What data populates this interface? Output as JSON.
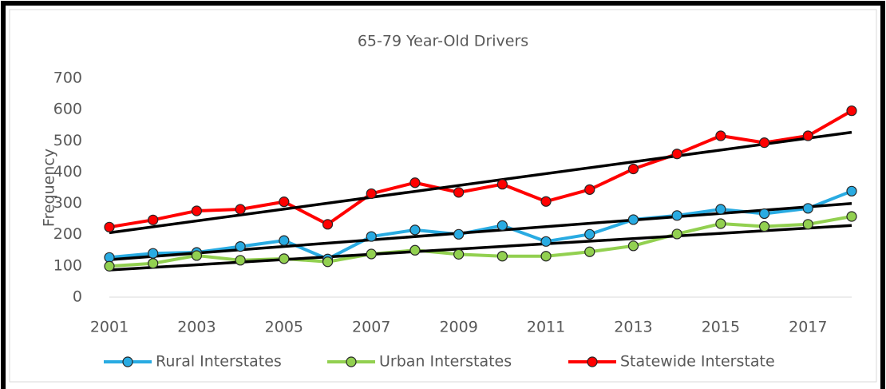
{
  "chart_data": {
    "type": "line",
    "title": "65-79 Year-Old Drivers",
    "y_label": "Frequency",
    "x": [
      2001,
      2002,
      2003,
      2004,
      2005,
      2006,
      2007,
      2008,
      2009,
      2010,
      2011,
      2012,
      2013,
      2014,
      2015,
      2016,
      2017,
      2018
    ],
    "xlim": [
      2001,
      2018
    ],
    "xticks": [
      2001,
      2003,
      2005,
      2007,
      2009,
      2011,
      2013,
      2015,
      2017
    ],
    "ylim": [
      0,
      700
    ],
    "yticks": [
      0,
      100,
      200,
      300,
      400,
      500,
      600,
      700
    ],
    "grid": false,
    "legend": "bottom",
    "trendline": true,
    "trendline_color": "#000000",
    "series": [
      {
        "name": "Rural Interstates",
        "color": "#29abe2",
        "values": [
          127,
          140,
          143,
          162,
          181,
          122,
          194,
          215,
          201,
          229,
          178,
          201,
          248,
          261,
          281,
          267,
          284,
          339
        ]
      },
      {
        "name": "Urban Interstates",
        "color": "#92d050",
        "values": [
          99,
          108,
          133,
          118,
          123,
          113,
          138,
          150,
          137,
          131,
          131,
          145,
          164,
          202,
          235,
          226,
          233,
          258
        ]
      },
      {
        "name": "Statewide Interstate",
        "color": "#ff0000",
        "values": [
          224,
          247,
          276,
          281,
          305,
          233,
          331,
          366,
          335,
          361,
          306,
          344,
          410,
          458,
          516,
          494,
          516,
          596
        ]
      }
    ]
  }
}
